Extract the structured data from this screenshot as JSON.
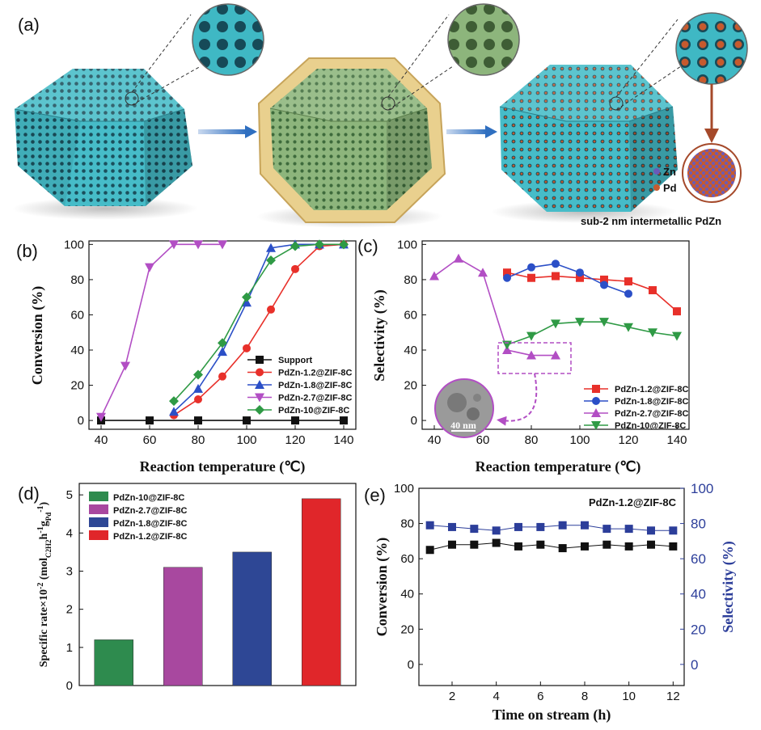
{
  "panel_a": {
    "label": "(a)",
    "legend_zn": "Zn",
    "legend_pd": "Pd",
    "caption": "sub-2 nm intermetallic PdZn",
    "colors": {
      "zif": "#3fb8c4",
      "shell": "#d8b86a",
      "green": "#7fa870",
      "pd": "#c65a2e",
      "zn": "#6a5ab8"
    }
  },
  "colors": {
    "support": "#111111",
    "pd12": "#e8302a",
    "pd18": "#2b4fc7",
    "pd27": "#b24ec4",
    "pd10": "#2f9a45",
    "bar10": "#2e8b4e",
    "bar27": "#a8489f",
    "bar18": "#2e4795",
    "bar12": "#e0262a",
    "stability_blue": "#2c3e9a",
    "annotation": "#b24ec4"
  },
  "chart_data": [
    {
      "id": "b",
      "label": "(b)",
      "type": "line",
      "xlabel": "Reaction temperature (℃)",
      "ylabel": "Conversion (%)",
      "xlim": [
        35,
        145
      ],
      "ylim": [
        -5,
        102
      ],
      "xticks": [
        "40",
        "60",
        "80",
        "100",
        "120",
        "140"
      ],
      "yticks": [
        "0",
        "20",
        "40",
        "60",
        "80",
        "100"
      ],
      "series": [
        {
          "name": "Support",
          "marker": "square",
          "color": "support",
          "x": [
            40,
            60,
            80,
            100,
            120,
            140
          ],
          "y": [
            0,
            0,
            0,
            0,
            0,
            0
          ]
        },
        {
          "name": "PdZn-1.2@ZIF-8C",
          "marker": "circle",
          "color": "pd12",
          "x": [
            70,
            80,
            90,
            100,
            110,
            120,
            130,
            140
          ],
          "y": [
            3,
            12,
            25,
            41,
            63,
            86,
            99,
            100
          ]
        },
        {
          "name": "PdZn-1.8@ZIF-8C",
          "marker": "triangle",
          "color": "pd18",
          "x": [
            70,
            80,
            90,
            100,
            110,
            120,
            130,
            140
          ],
          "y": [
            5,
            18,
            39,
            67,
            98,
            100,
            100,
            100
          ]
        },
        {
          "name": "PdZn-2.7@ZIF-8C",
          "marker": "triangle-down",
          "color": "pd27",
          "x": [
            40,
            50,
            60,
            70,
            80,
            90
          ],
          "y": [
            2,
            31,
            87,
            100,
            100,
            100
          ]
        },
        {
          "name": "PdZn-10@ZIF-8C",
          "marker": "diamond",
          "color": "pd10",
          "x": [
            70,
            80,
            90,
            100,
            110,
            120,
            130,
            140
          ],
          "y": [
            11,
            26,
            44,
            70,
            91,
            99,
            100,
            100
          ]
        }
      ]
    },
    {
      "id": "c",
      "label": "(c)",
      "type": "line",
      "xlabel": "Reaction temperature (℃)",
      "ylabel": "Selectivity (%)",
      "xlim": [
        35,
        145
      ],
      "ylim": [
        -5,
        102
      ],
      "xticks": [
        "40",
        "60",
        "80",
        "100",
        "120",
        "140"
      ],
      "yticks": [
        "0",
        "20",
        "40",
        "60",
        "80",
        "100"
      ],
      "inset_label": "40 nm",
      "series": [
        {
          "name": "PdZn-1.2@ZIF-8C",
          "marker": "square",
          "color": "pd12",
          "x": [
            70,
            80,
            90,
            100,
            110,
            120,
            130,
            140
          ],
          "y": [
            84,
            81,
            82,
            81,
            80,
            79,
            74,
            62
          ]
        },
        {
          "name": "PdZn-1.8@ZIF-8C",
          "marker": "circle",
          "color": "pd18",
          "x": [
            70,
            80,
            90,
            100,
            110,
            120
          ],
          "y": [
            81,
            87,
            89,
            84,
            77,
            72
          ]
        },
        {
          "name": "PdZn-2.7@ZIF-8C",
          "marker": "triangle",
          "color": "pd27",
          "x": [
            40,
            50,
            60,
            70,
            80,
            90
          ],
          "y": [
            82,
            92,
            84,
            40,
            37,
            37
          ]
        },
        {
          "name": "PdZn-10@ZIF-8C",
          "marker": "triangle-down",
          "color": "pd10",
          "x": [
            70,
            80,
            90,
            100,
            110,
            120,
            130,
            140
          ],
          "y": [
            43,
            48,
            55,
            56,
            56,
            53,
            50,
            48
          ]
        }
      ]
    },
    {
      "id": "d",
      "label": "(d)",
      "type": "bar",
      "ylabel": "Specific rate×10",
      "ylabel_sup": "-2",
      "ylabel_unit": " (mol",
      "ylabel_sub": "C2H2",
      "ylabel_unit2": "h",
      "ylabel_sup2": "-1",
      "ylabel_unit3": "g",
      "ylabel_sub2": "Pd",
      "ylabel_sup3": "-1",
      "ylabel_end": ")",
      "ylim": [
        0,
        5.3
      ],
      "yticks": [
        "0",
        "1",
        "2",
        "3",
        "4",
        "5"
      ],
      "categories": [
        "PdZn-10@ZIF-8C",
        "PdZn-2.7@ZIF-8C",
        "PdZn-1.8@ZIF-8C",
        "PdZn-1.2@ZIF-8C"
      ],
      "values": [
        1.2,
        3.1,
        3.5,
        4.9
      ],
      "bar_colors": [
        "bar10",
        "bar27",
        "bar18",
        "bar12"
      ]
    },
    {
      "id": "e",
      "label": "(e)",
      "type": "line",
      "title": "PdZn-1.2@ZIF-8C",
      "xlabel": "Time on stream (h)",
      "ylabel": "Conversion (%)",
      "ylabel_right": "Selectivity (%)",
      "xlim": [
        0.5,
        12.5
      ],
      "ylim": [
        -12,
        100
      ],
      "xticks": [
        "2",
        "4",
        "6",
        "8",
        "10",
        "12"
      ],
      "yticks": [
        "0",
        "20",
        "40",
        "60",
        "80",
        "100"
      ],
      "yticks_right": [
        "0",
        "20",
        "40",
        "60",
        "80",
        "100"
      ],
      "series": [
        {
          "name": "Conversion",
          "marker": "square",
          "color": "support",
          "x": [
            1,
            2,
            3,
            4,
            5,
            6,
            7,
            8,
            9,
            10,
            11,
            12
          ],
          "y": [
            65,
            68,
            68,
            69,
            67,
            68,
            66,
            67,
            68,
            67,
            68,
            67
          ]
        },
        {
          "name": "Selectivity",
          "marker": "square",
          "color": "stability_blue",
          "x": [
            1,
            2,
            3,
            4,
            5,
            6,
            7,
            8,
            9,
            10,
            11,
            12
          ],
          "y": [
            79,
            78,
            77,
            76,
            78,
            78,
            79,
            79,
            77,
            77,
            76,
            76
          ]
        }
      ]
    }
  ]
}
